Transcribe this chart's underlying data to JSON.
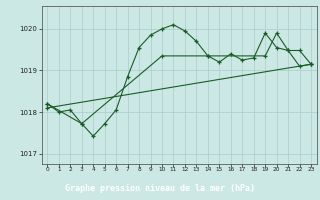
{
  "title": "Graphe pression niveau de la mer (hPa)",
  "background_color": "#cce8e4",
  "grid_color": "#aacccc",
  "line_color": "#1a5c28",
  "title_bg": "#2d6e3e",
  "title_fg": "#ffffff",
  "ylim": [
    1016.75,
    1020.55
  ],
  "yticks": [
    1017,
    1018,
    1019,
    1020
  ],
  "xlim": [
    -0.5,
    23.5
  ],
  "xticks": [
    0,
    1,
    2,
    3,
    4,
    5,
    6,
    7,
    8,
    9,
    10,
    11,
    12,
    13,
    14,
    15,
    16,
    17,
    18,
    19,
    20,
    21,
    22,
    23
  ],
  "line1_x": [
    0,
    1,
    2,
    3,
    4,
    5,
    6,
    7,
    8,
    9,
    10,
    11,
    12,
    13,
    14,
    15,
    16,
    17,
    18,
    19,
    20,
    21,
    22,
    23
  ],
  "line1_y": [
    1018.2,
    1018.0,
    1018.05,
    1017.72,
    1017.42,
    1017.72,
    1018.05,
    1018.85,
    1019.55,
    1019.85,
    1020.0,
    1020.1,
    1019.95,
    1019.7,
    1019.35,
    1019.2,
    1019.4,
    1019.25,
    1019.3,
    1019.9,
    1019.55,
    1019.48,
    1019.1,
    1019.15
  ],
  "line2_x": [
    0,
    3,
    10,
    14,
    19,
    20,
    21,
    22,
    23
  ],
  "line2_y": [
    1018.2,
    1017.72,
    1019.35,
    1019.35,
    1019.35,
    1019.9,
    1019.48,
    1019.48,
    1019.15
  ],
  "line3_x": [
    0,
    23
  ],
  "line3_y": [
    1018.1,
    1019.15
  ]
}
